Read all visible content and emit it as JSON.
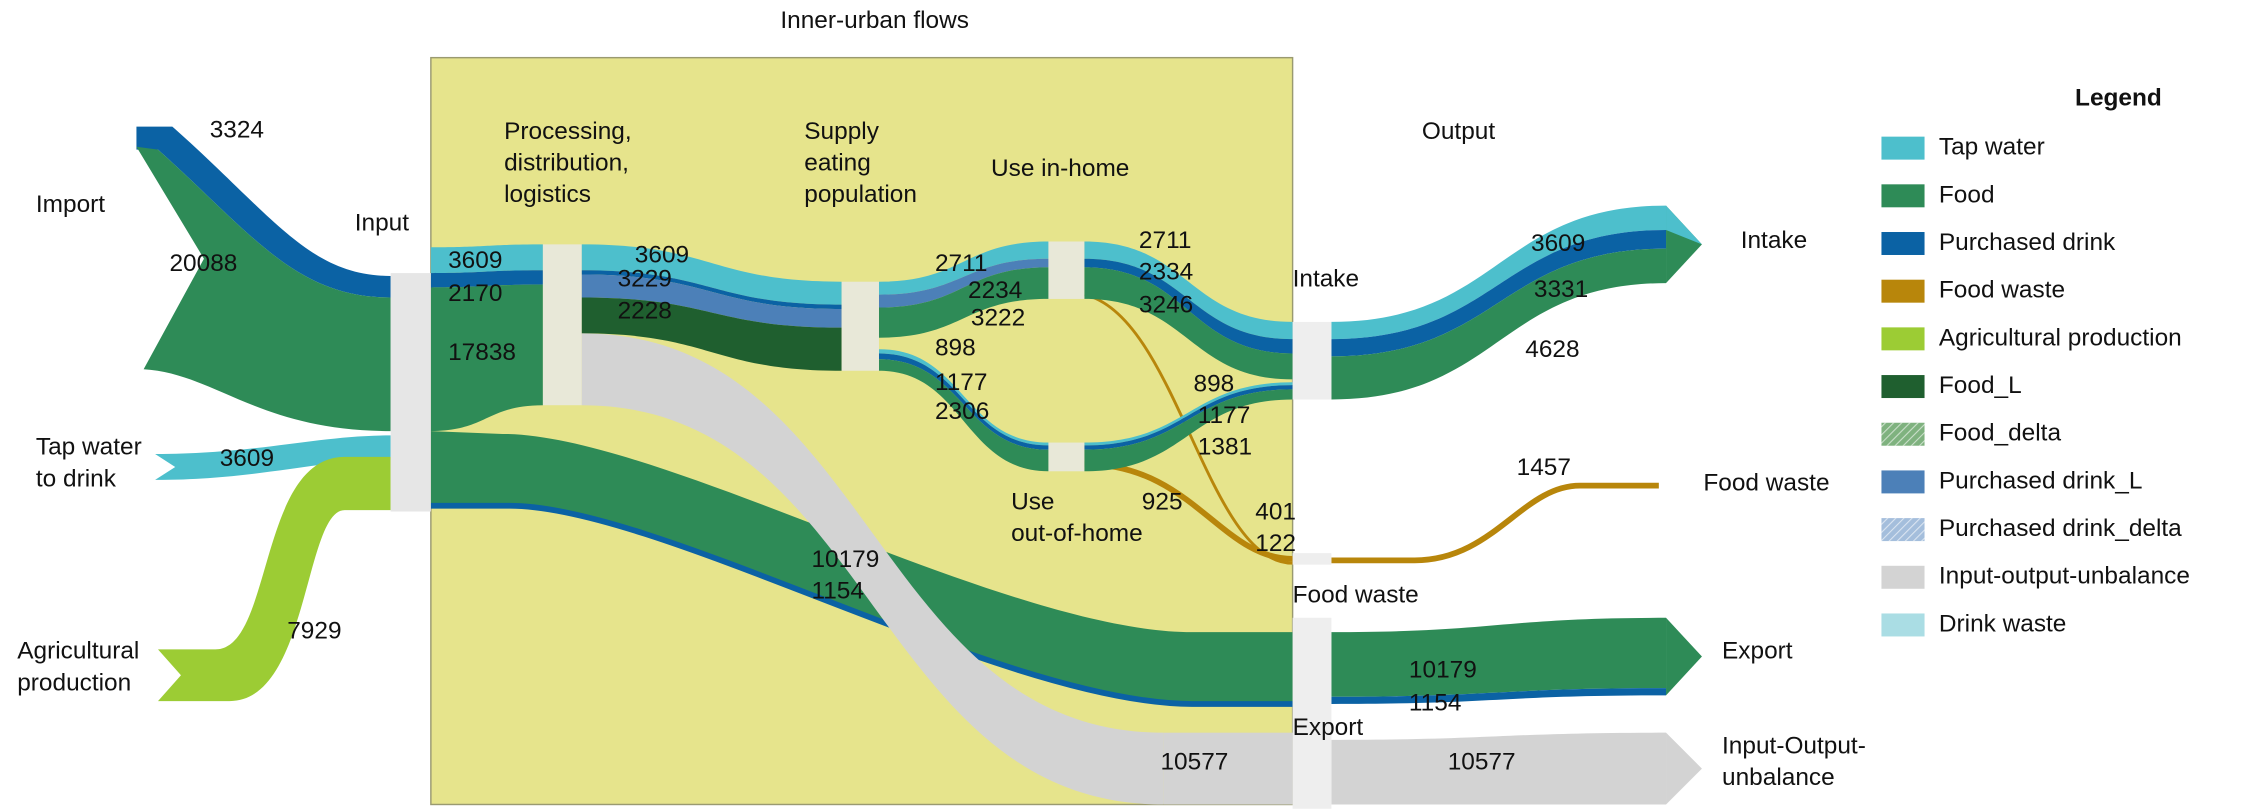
{
  "title": "Inner-urban flows",
  "left_labels": [
    [
      "Import"
    ],
    [
      "Tap water",
      "to drink"
    ],
    [
      "Agricultural",
      "production"
    ]
  ],
  "stage_labels": [
    [
      "Input"
    ],
    [
      "Processing,",
      "distribution,",
      "logistics"
    ],
    [
      "Supply",
      "eating",
      "population"
    ],
    [
      "Use in-home"
    ],
    [
      "Use",
      "out-of-home"
    ],
    [
      "Output"
    ],
    [
      "Intake"
    ],
    [
      "Food waste"
    ],
    [
      "Export"
    ]
  ],
  "outputs": [
    [
      "Intake"
    ],
    [
      "Food waste"
    ],
    [
      "Export"
    ],
    [
      "Input-Output-",
      "unbalance"
    ]
  ],
  "flow_labels": [
    3324,
    20088,
    3609,
    7929,
    3609,
    2170,
    17838,
    3609,
    3229,
    2228,
    2711,
    2234,
    3222,
    898,
    1177,
    2306,
    2711,
    2334,
    3246,
    898,
    1177,
    1381,
    925,
    401,
    122,
    10179,
    1154,
    10577,
    3609,
    3331,
    4628,
    1457,
    10179,
    1154,
    10577
  ],
  "legend": {
    "title": "Legend",
    "items": [
      {
        "name": "Tap water",
        "color": "#4dbfcc"
      },
      {
        "name": "Food",
        "color": "#2e8b57"
      },
      {
        "name": "Purchased drink",
        "color": "#0b62a4"
      },
      {
        "name": "Food waste",
        "color": "#b8860b"
      },
      {
        "name": "Agricultural production",
        "color": "#9ccc34"
      },
      {
        "name": "Food_L",
        "color": "#1f5f2f"
      },
      {
        "name": "Food_delta",
        "color": "#7fb27f",
        "hatched": true
      },
      {
        "name": "Purchased drink_L",
        "color": "#4c80b8"
      },
      {
        "name": "Purchased drink_delta",
        "color": "#a4bedc",
        "hatched": true
      },
      {
        "name": "Input-output-unbalance",
        "color": "#d3d3d3"
      },
      {
        "name": "Drink waste",
        "color": "#aadde4"
      }
    ]
  }
}
